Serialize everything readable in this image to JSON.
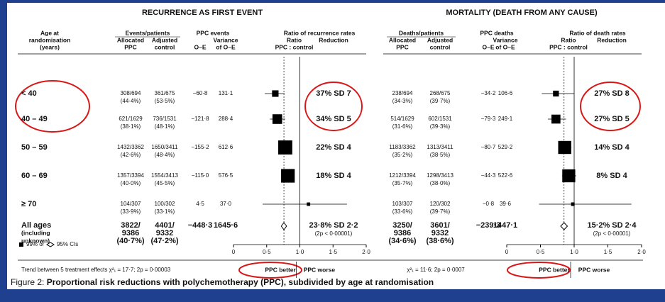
{
  "age_header": [
    "Age at",
    "randomisation",
    "(years)"
  ],
  "age_labels": [
    [
      "< 40"
    ],
    [
      "40 – 49"
    ],
    [
      "50 – 59"
    ],
    [
      "60 – 69"
    ],
    [
      "≥ 70"
    ],
    [
      "All ages",
      "(including",
      "unknown)"
    ]
  ],
  "legend": {
    "square": "99% or",
    "diamond": "95% CIs"
  },
  "panels": [
    {
      "title": "RECURRENCE AS FIRST EVENT",
      "headers": {
        "group": "Events/patients",
        "alloc": [
          "Allocated",
          "PPC"
        ],
        "ctrl": [
          "Adjusted",
          "control"
        ],
        "pe": "PPC events",
        "oe": "O–E",
        "var": [
          "Variance",
          "of O–E"
        ],
        "ratio": "Ratio of recurrence rates",
        "ratio_sub": "Ratio",
        "red": "Reduction",
        "pc": "PPC : control"
      },
      "rows": [
        {
          "alloc": [
            "308/694",
            "(44·4%)"
          ],
          "ctrl": [
            "361/675",
            "(53·5%)"
          ],
          "oe": "−60·8",
          "var": "131·1",
          "red": "37% SD 7",
          "ratio": 0.63,
          "lo": 0.47,
          "hi": 0.77
        },
        {
          "alloc": [
            "621/1629",
            "(38·1%)"
          ],
          "ctrl": [
            "736/1531",
            "(48·1%)"
          ],
          "oe": "−121·8",
          "var": "288·4",
          "red": "34% SD 5",
          "ratio": 0.66,
          "lo": 0.55,
          "hi": 0.78
        },
        {
          "alloc": [
            "1432/3362",
            "(42·6%)"
          ],
          "ctrl": [
            "1650/3411",
            "(48·4%)"
          ],
          "oe": "−155·2",
          "var": "612·6",
          "red": "22% SD 4",
          "ratio": 0.78,
          "lo": 0.7,
          "hi": 0.86
        },
        {
          "alloc": [
            "1357/3394",
            "(40·0%)"
          ],
          "ctrl": [
            "1554/3413",
            "(45·5%)"
          ],
          "oe": "−115·0",
          "var": "576·5",
          "red": "18% SD 4",
          "ratio": 0.82,
          "lo": 0.74,
          "hi": 0.91
        },
        {
          "alloc": [
            "104/307",
            "(33·9%)"
          ],
          "ctrl": [
            "100/302",
            "(33·1%)"
          ],
          "oe": "4·5",
          "var": "37·0",
          "ratio": 1.13,
          "lo": 0.44,
          "hi": 1.71
        },
        {
          "alloc": [
            "3822/",
            "9386",
            "(40·7%)"
          ],
          "ctrl": [
            "4401/",
            "9332",
            "(47·2%)"
          ],
          "oe": "−448·3",
          "var": "1645·6",
          "red": "23·8% SD 2·2",
          "note": "(2p < 0·00001)",
          "ratio": 0.76,
          "lo": 0.72,
          "hi": 0.8
        }
      ],
      "xlim": [
        0,
        2
      ],
      "xticks": [
        0,
        {
          "value": 0.5,
          "label": "0·5"
        },
        {
          "value": 1,
          "label": "1·0"
        },
        {
          "value": 1.5,
          "label": "1·5"
        },
        {
          "value": 2,
          "label": "2·0"
        }
      ],
      "trend": "Trend between 5 treatment effects χ²₁ = 17·7; 2p = 0·00003",
      "better": "PPC better",
      "worse": "PPC worse"
    },
    {
      "title": "MORTALITY (DEATH FROM ANY CAUSE)",
      "headers": {
        "group": "Deaths/patients",
        "alloc": [
          "Allocated",
          "PPC"
        ],
        "ctrl": [
          "Adjusted",
          "control"
        ],
        "pe": "PPC deaths",
        "oe": "O–E",
        "var": [
          "Variance",
          "of O–E"
        ],
        "ratio": "Ratio of death rates",
        "ratio_sub": "Ratio",
        "red": "Reduction",
        "pc": "PPC : control"
      },
      "rows": [
        {
          "alloc": [
            "238/694",
            "(34·3%)"
          ],
          "ctrl": [
            "268/675",
            "(39·7%)"
          ],
          "oe": "−34·2",
          "var": "106·6",
          "red": "27% SD 8",
          "ratio": 0.73,
          "lo": 0.52,
          "hi": 1.0
        },
        {
          "alloc": [
            "514/1629",
            "(31·6%)"
          ],
          "ctrl": [
            "602/1531",
            "(39·3%)"
          ],
          "oe": "−79·3",
          "var": "249·1",
          "red": "27% SD 5",
          "ratio": 0.73,
          "lo": 0.61,
          "hi": 0.88
        },
        {
          "alloc": [
            "1183/3362",
            "(35·2%)"
          ],
          "ctrl": [
            "1313/3411",
            "(38·5%)"
          ],
          "oe": "−80·7",
          "var": "529·2",
          "red": "14% SD 4",
          "ratio": 0.86,
          "lo": 0.77,
          "hi": 0.96
        },
        {
          "alloc": [
            "1212/3394",
            "(35·7%)"
          ],
          "ctrl": [
            "1298/3413",
            "(38·0%)"
          ],
          "oe": "−44·3",
          "var": "522·6",
          "red": "8% SD 4",
          "ratio": 0.92,
          "lo": 0.82,
          "hi": 1.03
        },
        {
          "alloc": [
            "103/307",
            "(33·6%)"
          ],
          "ctrl": [
            "120/302",
            "(39·7%)"
          ],
          "oe": "−0·8",
          "var": "39·6",
          "ratio": 0.98,
          "lo": 0.48,
          "hi": 1.85
        },
        {
          "alloc": [
            "3250/",
            "9386",
            "(34·6%)"
          ],
          "ctrl": [
            "3601/",
            "9332",
            "(38·6%)"
          ],
          "oe": "−239·3",
          "var": "1447·1",
          "red": "15·2% SD 2·4",
          "note": "(2p < 0·00001)",
          "ratio": 0.85,
          "lo": 0.8,
          "hi": 0.9
        }
      ],
      "xlim": [
        0,
        2
      ],
      "xticks": [
        0,
        {
          "value": 0.5,
          "label": "0·5"
        },
        {
          "value": 1,
          "label": "1·0"
        },
        {
          "value": 1.5,
          "label": "1·5"
        },
        {
          "value": 2,
          "label": "2·0"
        }
      ],
      "trend": "χ²₁ = 11·6; 2p = 0·0007",
      "better": "PPC better",
      "worse": "PPC worse"
    }
  ],
  "caption": {
    "label": "Figure 2:",
    "text": "Proportional risk reductions with polychemotherapy (PPC), subdivided by age at randomisation"
  }
}
